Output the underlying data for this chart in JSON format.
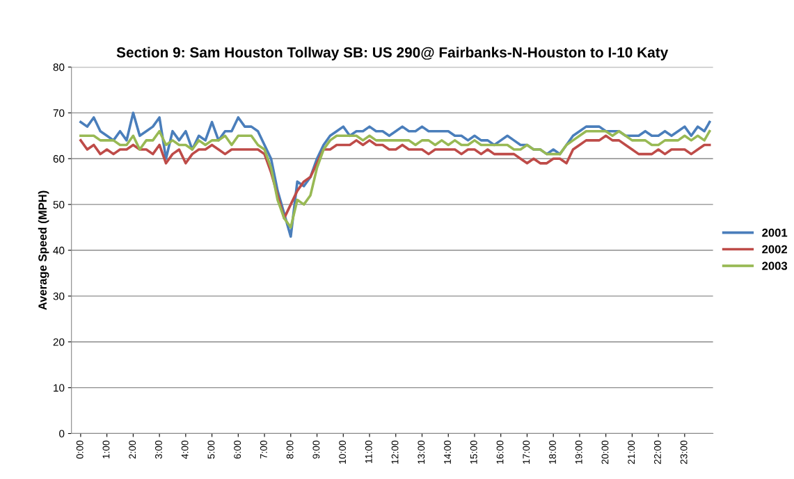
{
  "chart_data": {
    "type": "line",
    "title": "Section 9: Sam Houston Tollway SB: US 290@ Fairbanks-N-Houston to I-10 Katy",
    "ylabel": "Average Speed (MPH)",
    "x": [
      0,
      0.25,
      0.5,
      0.75,
      1,
      1.25,
      1.5,
      1.75,
      2,
      2.25,
      2.5,
      2.75,
      3,
      3.25,
      3.5,
      3.75,
      4,
      4.25,
      4.5,
      4.75,
      5,
      5.25,
      5.5,
      5.75,
      6,
      6.25,
      6.5,
      6.75,
      7,
      7.25,
      7.5,
      7.75,
      8,
      8.25,
      8.5,
      8.75,
      9,
      9.25,
      9.5,
      9.75,
      10,
      10.25,
      10.5,
      10.75,
      11,
      11.25,
      11.5,
      11.75,
      12,
      12.25,
      12.5,
      12.75,
      13,
      13.25,
      13.5,
      13.75,
      14,
      14.25,
      14.5,
      14.75,
      15,
      15.25,
      15.5,
      15.75,
      16,
      16.25,
      16.5,
      16.75,
      17,
      17.25,
      17.5,
      17.75,
      18,
      18.25,
      18.5,
      18.75,
      19,
      19.25,
      19.5,
      19.75,
      20,
      20.25,
      20.5,
      20.75,
      21,
      21.25,
      21.5,
      21.75,
      22,
      22.25,
      22.5,
      22.75,
      23,
      23.25,
      23.5,
      23.75,
      23.95
    ],
    "series": [
      {
        "name": "2001",
        "color": "#4a7ebb",
        "values": [
          68,
          67,
          69,
          66,
          65,
          64,
          66,
          64,
          70,
          65,
          66,
          67,
          69,
          60,
          66,
          64,
          66,
          62,
          65,
          64,
          68,
          64,
          66,
          66,
          69,
          67,
          67,
          66,
          63,
          60,
          53,
          48,
          43,
          55,
          54,
          56,
          60,
          63,
          65,
          66,
          67,
          65,
          66,
          66,
          67,
          66,
          66,
          65,
          66,
          67,
          66,
          66,
          67,
          66,
          66,
          66,
          66,
          65,
          65,
          64,
          65,
          64,
          64,
          63,
          64,
          65,
          64,
          63,
          63,
          62,
          62,
          61,
          62,
          61,
          63,
          65,
          66,
          67,
          67,
          67,
          66,
          66,
          66,
          65,
          65,
          65,
          66,
          65,
          65,
          66,
          65,
          66,
          67,
          65,
          67,
          66,
          68
        ]
      },
      {
        "name": "2002",
        "color": "#be4b48",
        "values": [
          64,
          62,
          63,
          61,
          62,
          61,
          62,
          62,
          63,
          62,
          62,
          61,
          63,
          59,
          61,
          62,
          59,
          61,
          62,
          62,
          63,
          62,
          61,
          62,
          62,
          62,
          62,
          62,
          61,
          57,
          52,
          47,
          50,
          53,
          55,
          56,
          59,
          62,
          62,
          63,
          63,
          63,
          64,
          63,
          64,
          63,
          63,
          62,
          62,
          63,
          62,
          62,
          62,
          61,
          62,
          62,
          62,
          62,
          61,
          62,
          62,
          61,
          62,
          61,
          61,
          61,
          61,
          60,
          59,
          60,
          59,
          59,
          60,
          60,
          59,
          62,
          63,
          64,
          64,
          64,
          65,
          64,
          64,
          63,
          62,
          61,
          61,
          61,
          62,
          61,
          62,
          62,
          62,
          61,
          62,
          63,
          63
        ]
      },
      {
        "name": "2003",
        "color": "#98b954",
        "values": [
          65,
          65,
          65,
          64,
          64,
          64,
          63,
          63,
          65,
          62,
          64,
          64,
          66,
          63,
          64,
          63,
          63,
          62,
          64,
          63,
          64,
          64,
          65,
          63,
          65,
          65,
          65,
          63,
          62,
          58,
          51,
          47,
          45,
          51,
          50,
          52,
          58,
          62,
          64,
          65,
          65,
          65,
          65,
          64,
          65,
          64,
          64,
          64,
          64,
          64,
          64,
          63,
          64,
          64,
          63,
          64,
          63,
          64,
          63,
          63,
          64,
          63,
          63,
          63,
          63,
          63,
          62,
          62,
          63,
          62,
          62,
          61,
          61,
          61,
          63,
          64,
          65,
          66,
          66,
          66,
          66,
          65,
          66,
          65,
          64,
          64,
          64,
          63,
          63,
          64,
          64,
          64,
          65,
          64,
          65,
          64,
          66
        ]
      }
    ],
    "xlim": [
      -0.35,
      24.08
    ],
    "xticks": [
      {
        "value": 0,
        "label": "0:00"
      },
      {
        "value": 1,
        "label": "1:00"
      },
      {
        "value": 2,
        "label": "2:00"
      },
      {
        "value": 3,
        "label": "3:00"
      },
      {
        "value": 4,
        "label": "4:00"
      },
      {
        "value": 5,
        "label": "5:00"
      },
      {
        "value": 6,
        "label": "6:00"
      },
      {
        "value": 7,
        "label": "7:00"
      },
      {
        "value": 8,
        "label": "8:00"
      },
      {
        "value": 9,
        "label": "9:00"
      },
      {
        "value": 10,
        "label": "10:00"
      },
      {
        "value": 11,
        "label": "11:00"
      },
      {
        "value": 12,
        "label": "12:00"
      },
      {
        "value": 13,
        "label": "13:00"
      },
      {
        "value": 14,
        "label": "14:00"
      },
      {
        "value": 15,
        "label": "15:00"
      },
      {
        "value": 16,
        "label": "16:00"
      },
      {
        "value": 17,
        "label": "17:00"
      },
      {
        "value": 18,
        "label": "18:00"
      },
      {
        "value": 19,
        "label": "19:00"
      },
      {
        "value": 20,
        "label": "20:00"
      },
      {
        "value": 21,
        "label": "21:00"
      },
      {
        "value": 22,
        "label": "22:00"
      },
      {
        "value": 23,
        "label": "23:00"
      }
    ],
    "ylim": [
      0,
      80
    ],
    "yticks": [
      0,
      10,
      20,
      30,
      40,
      50,
      60,
      70,
      80
    ],
    "grid": "y",
    "legend": "right",
    "marker": "none",
    "line_style": "solid"
  }
}
